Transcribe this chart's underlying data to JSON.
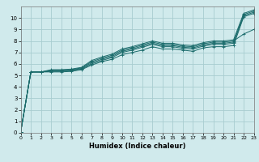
{
  "xlabel": "Humidex (Indice chaleur)",
  "bg_color": "#d0eaec",
  "grid_color": "#a8cdd0",
  "line_color": "#1a6b6b",
  "xlim": [
    0,
    23
  ],
  "ylim": [
    0,
    11
  ],
  "xticks": [
    0,
    1,
    2,
    3,
    4,
    5,
    6,
    7,
    8,
    9,
    10,
    11,
    12,
    13,
    14,
    15,
    16,
    17,
    18,
    19,
    20,
    21,
    22,
    23
  ],
  "yticks": [
    0,
    1,
    2,
    3,
    4,
    5,
    6,
    7,
    8,
    9,
    10
  ],
  "lines": [
    {
      "x": [
        0,
        1,
        2,
        3,
        4,
        5,
        6,
        7,
        8,
        9,
        10,
        11,
        12,
        13,
        14,
        15,
        16,
        17,
        18,
        19,
        20,
        21,
        22,
        23
      ],
      "y": [
        0.1,
        5.3,
        5.3,
        5.3,
        5.3,
        5.35,
        5.5,
        5.9,
        6.2,
        6.4,
        6.8,
        7.0,
        7.2,
        7.5,
        7.3,
        7.3,
        7.2,
        7.1,
        7.4,
        7.5,
        7.5,
        7.6,
        10.1,
        10.4
      ]
    },
    {
      "x": [
        0,
        1,
        2,
        3,
        4,
        5,
        6,
        7,
        8,
        9,
        10,
        11,
        12,
        13,
        14,
        15,
        16,
        17,
        18,
        19,
        20,
        21,
        22,
        23
      ],
      "y": [
        0.1,
        5.3,
        5.3,
        5.35,
        5.35,
        5.4,
        5.55,
        6.0,
        6.3,
        6.55,
        7.0,
        7.2,
        7.45,
        7.7,
        7.5,
        7.5,
        7.35,
        7.3,
        7.55,
        7.7,
        7.7,
        7.8,
        10.2,
        10.5
      ]
    },
    {
      "x": [
        0,
        1,
        2,
        3,
        4,
        5,
        6,
        7,
        8,
        9,
        10,
        11,
        12,
        13,
        14,
        15,
        16,
        17,
        18,
        19,
        20,
        21,
        22,
        23
      ],
      "y": [
        0.1,
        5.3,
        5.3,
        5.4,
        5.4,
        5.45,
        5.6,
        6.1,
        6.4,
        6.65,
        7.1,
        7.3,
        7.55,
        7.8,
        7.6,
        7.6,
        7.45,
        7.4,
        7.65,
        7.8,
        7.8,
        7.9,
        10.3,
        10.6
      ]
    },
    {
      "x": [
        0,
        1,
        2,
        3,
        4,
        5,
        6,
        7,
        8,
        9,
        10,
        11,
        12,
        13,
        14,
        15,
        16,
        17,
        18,
        19,
        20,
        21,
        22,
        23
      ],
      "y": [
        0.1,
        5.3,
        5.3,
        5.45,
        5.45,
        5.5,
        5.65,
        6.2,
        6.5,
        6.75,
        7.2,
        7.4,
        7.65,
        7.9,
        7.7,
        7.7,
        7.55,
        7.5,
        7.75,
        7.9,
        7.9,
        8.0,
        8.6,
        9.0
      ]
    },
    {
      "x": [
        0,
        1,
        2,
        3,
        4,
        5,
        6,
        7,
        8,
        9,
        10,
        11,
        12,
        13,
        14,
        15,
        16,
        17,
        18,
        19,
        20,
        21,
        22,
        23
      ],
      "y": [
        0.1,
        5.3,
        5.3,
        5.5,
        5.5,
        5.55,
        5.7,
        6.3,
        6.6,
        6.85,
        7.3,
        7.5,
        7.75,
        8.0,
        7.8,
        7.8,
        7.65,
        7.6,
        7.85,
        8.0,
        8.0,
        8.1,
        10.4,
        10.7
      ]
    }
  ]
}
